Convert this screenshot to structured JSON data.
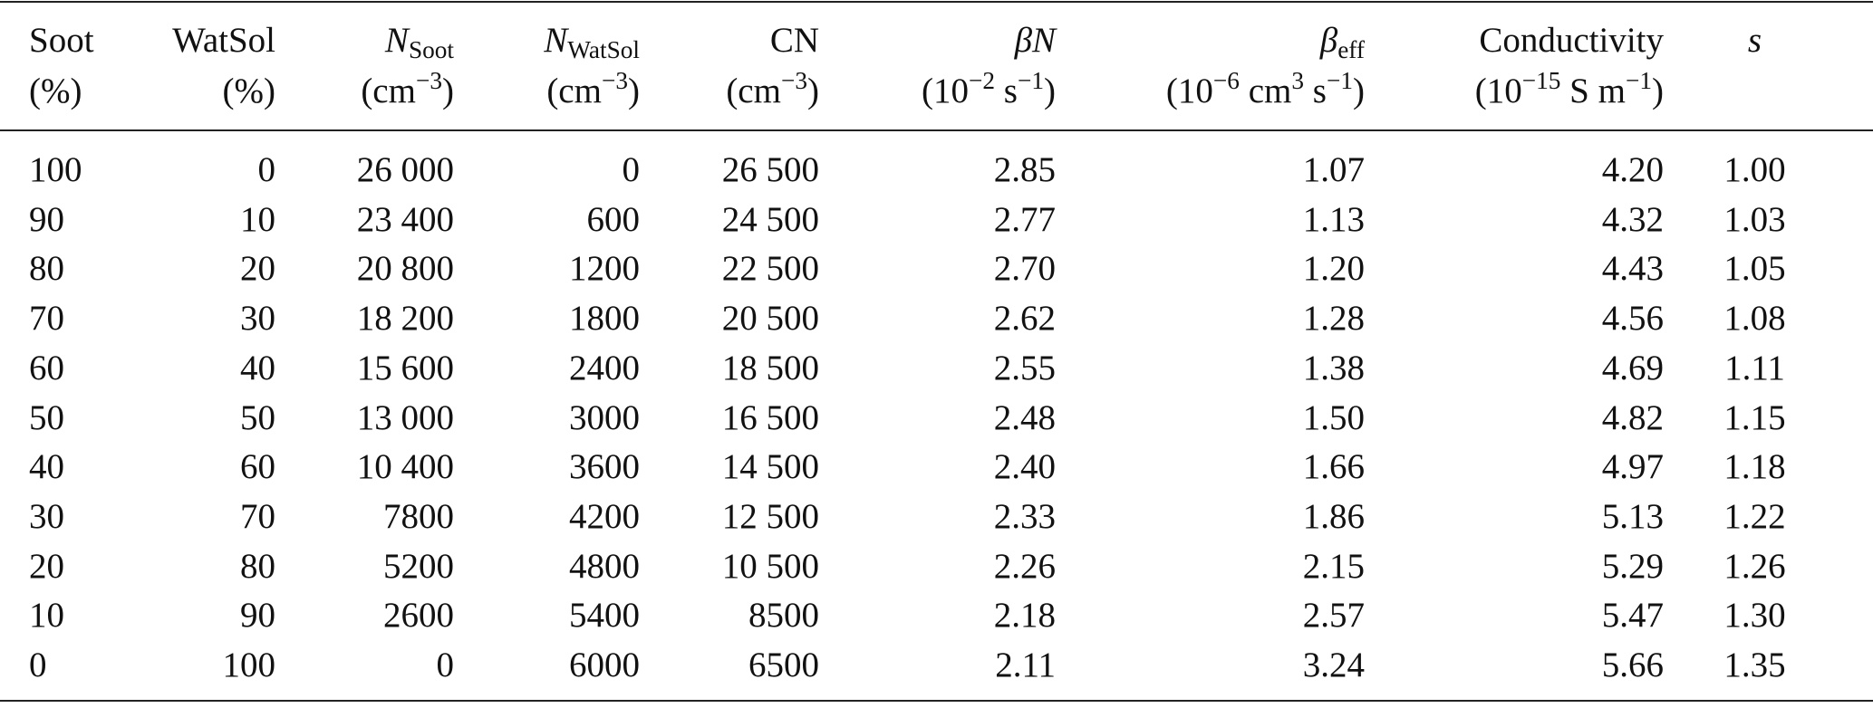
{
  "table": {
    "columns": [
      {
        "label": [
          {
            "text": "Soot",
            "style": "plain"
          }
        ],
        "unit": [
          {
            "text": "(%)",
            "style": "plain"
          }
        ],
        "align": "left"
      },
      {
        "label": [
          {
            "text": "WatSol",
            "style": "plain"
          }
        ],
        "unit": [
          {
            "text": "(%)",
            "style": "plain"
          }
        ],
        "align": "right"
      },
      {
        "label": [
          {
            "text": "N",
            "style": "italic"
          },
          {
            "text": "Soot",
            "style": "sub"
          }
        ],
        "unit": [
          {
            "text": "(cm",
            "style": "plain"
          },
          {
            "text": "−3",
            "style": "sup"
          },
          {
            "text": ")",
            "style": "plain"
          }
        ],
        "align": "right"
      },
      {
        "label": [
          {
            "text": "N",
            "style": "italic"
          },
          {
            "text": "WatSol",
            "style": "sub"
          }
        ],
        "unit": [
          {
            "text": "(cm",
            "style": "plain"
          },
          {
            "text": "−3",
            "style": "sup"
          },
          {
            "text": ")",
            "style": "plain"
          }
        ],
        "align": "right"
      },
      {
        "label": [
          {
            "text": "CN",
            "style": "plain"
          }
        ],
        "unit": [
          {
            "text": "(cm",
            "style": "plain"
          },
          {
            "text": "−3",
            "style": "sup"
          },
          {
            "text": ")",
            "style": "plain"
          }
        ],
        "align": "right"
      },
      {
        "label": [
          {
            "text": "βN",
            "style": "italic"
          }
        ],
        "unit": [
          {
            "text": "(10",
            "style": "plain"
          },
          {
            "text": "−2",
            "style": "sup"
          },
          {
            "text": " s",
            "style": "plain"
          },
          {
            "text": "−1",
            "style": "sup"
          },
          {
            "text": ")",
            "style": "plain"
          }
        ],
        "align": "right"
      },
      {
        "label": [
          {
            "text": "β",
            "style": "italic"
          },
          {
            "text": "eff",
            "style": "sub"
          }
        ],
        "unit": [
          {
            "text": "(10",
            "style": "plain"
          },
          {
            "text": "−6",
            "style": "sup"
          },
          {
            "text": " cm",
            "style": "plain"
          },
          {
            "text": "3",
            "style": "sup"
          },
          {
            "text": " s",
            "style": "plain"
          },
          {
            "text": "−1",
            "style": "sup"
          },
          {
            "text": ")",
            "style": "plain"
          }
        ],
        "align": "right"
      },
      {
        "label": [
          {
            "text": "Conductivity",
            "style": "plain"
          }
        ],
        "unit": [
          {
            "text": "(10",
            "style": "plain"
          },
          {
            "text": "−15",
            "style": "sup"
          },
          {
            "text": " S m",
            "style": "plain"
          },
          {
            "text": "−1",
            "style": "sup"
          },
          {
            "text": ")",
            "style": "plain"
          }
        ],
        "align": "right"
      },
      {
        "label": [
          {
            "text": "s",
            "style": "italic"
          }
        ],
        "unit": [],
        "align": "center"
      }
    ],
    "rows": [
      [
        "100",
        "0",
        "26 000",
        "0",
        "26 500",
        "2.85",
        "1.07",
        "4.20",
        "1.00"
      ],
      [
        "90",
        "10",
        "23 400",
        "600",
        "24 500",
        "2.77",
        "1.13",
        "4.32",
        "1.03"
      ],
      [
        "80",
        "20",
        "20 800",
        "1200",
        "22 500",
        "2.70",
        "1.20",
        "4.43",
        "1.05"
      ],
      [
        "70",
        "30",
        "18 200",
        "1800",
        "20 500",
        "2.62",
        "1.28",
        "4.56",
        "1.08"
      ],
      [
        "60",
        "40",
        "15 600",
        "2400",
        "18 500",
        "2.55",
        "1.38",
        "4.69",
        "1.11"
      ],
      [
        "50",
        "50",
        "13 000",
        "3000",
        "16 500",
        "2.48",
        "1.50",
        "4.82",
        "1.15"
      ],
      [
        "40",
        "60",
        "10 400",
        "3600",
        "14 500",
        "2.40",
        "1.66",
        "4.97",
        "1.18"
      ],
      [
        "30",
        "70",
        "7800",
        "4200",
        "12 500",
        "2.33",
        "1.86",
        "5.13",
        "1.22"
      ],
      [
        "20",
        "80",
        "5200",
        "4800",
        "10 500",
        "2.26",
        "2.15",
        "5.29",
        "1.26"
      ],
      [
        "10",
        "90",
        "2600",
        "5400",
        "8500",
        "2.18",
        "2.57",
        "5.47",
        "1.30"
      ],
      [
        "0",
        "100",
        "0",
        "6000",
        "6500",
        "2.11",
        "3.24",
        "5.66",
        "1.35"
      ]
    ]
  }
}
